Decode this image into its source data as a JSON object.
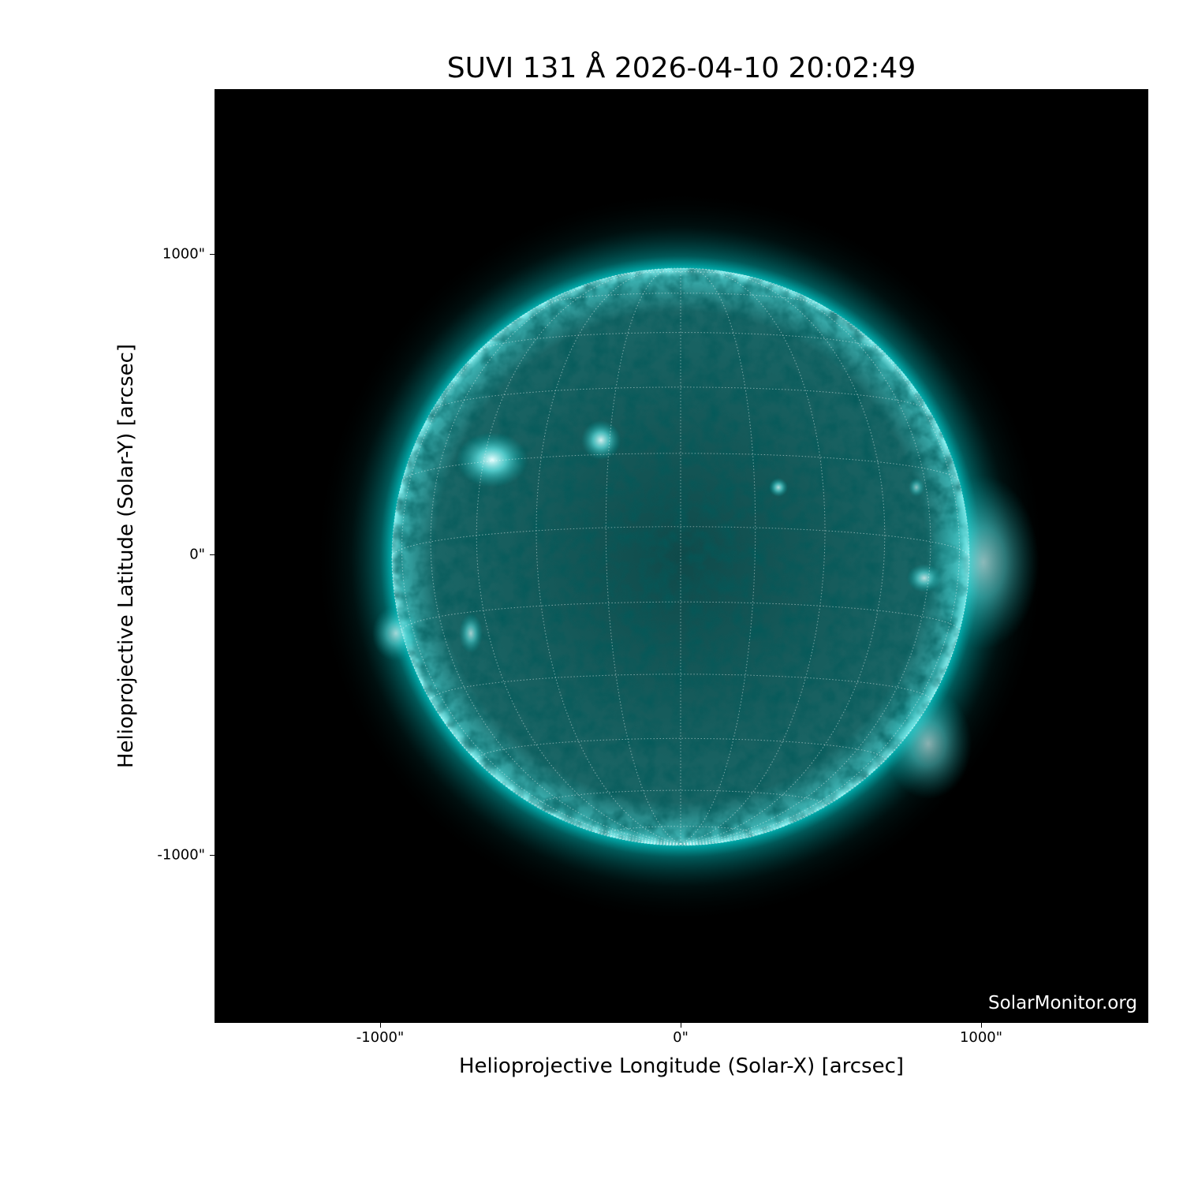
{
  "title": "SUVI 131 Å 2026-04-10 20:02:49",
  "watermark": "SolarMonitor.org",
  "xlabel": "Helioprojective Longitude (Solar-X) [arcsec]",
  "ylabel": "Helioprojective Latitude (Solar-Y) [arcsec]",
  "xticks": [
    "-1000\"",
    "0\"",
    "1000\""
  ],
  "yticks": [
    "1000\"",
    "0\"",
    "-1000\""
  ],
  "colors": {
    "sun": "#00c8c8",
    "background": "#000000"
  },
  "grid": "heliographic, dotted"
}
